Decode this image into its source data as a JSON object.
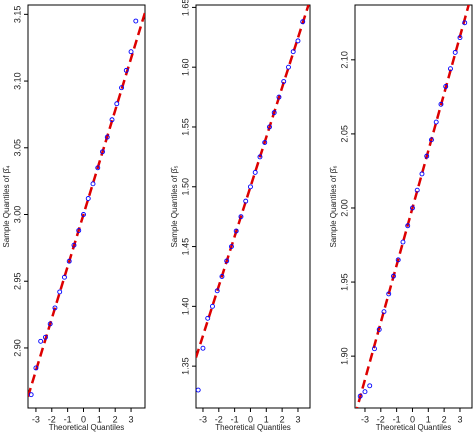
{
  "chart_data": [
    {
      "type": "scatter",
      "x_label": "Theoretical Quantiles",
      "y_label": "Sample Quantiles of β̂₄",
      "color": "#0000ff",
      "line_color": "#dd0000",
      "x": [
        -3.3,
        -3.0,
        -2.7,
        -2.4,
        -2.1,
        -1.8,
        -1.5,
        -1.2,
        -0.9,
        -0.6,
        -0.3,
        0,
        0.3,
        0.6,
        0.9,
        1.2,
        1.5,
        1.8,
        2.1,
        2.4,
        2.7,
        3.0,
        3.3
      ],
      "values": [
        2.865,
        2.885,
        2.905,
        2.908,
        2.918,
        2.93,
        2.942,
        2.953,
        2.965,
        2.977,
        2.988,
        3.0,
        3.012,
        3.023,
        3.035,
        3.047,
        3.058,
        3.071,
        3.083,
        3.095,
        3.108,
        3.122,
        3.145
      ],
      "ref_line": {
        "intercept": 3.0,
        "slope": 0.039
      },
      "xlim": [
        -3.5,
        3.88
      ],
      "ylim": [
        2.855,
        3.157
      ],
      "xticks": [
        -3,
        -2,
        -1,
        0,
        1,
        2,
        3
      ],
      "yticks": [
        {
          "value": 2.9,
          "label": "2.90"
        },
        2.95,
        {
          "value": 3.0,
          "label": "3.00"
        },
        3.05,
        {
          "value": 3.1,
          "label": "3.10"
        },
        3.15
      ]
    },
    {
      "type": "scatter",
      "x_label": "Theoretical Quantiles",
      "y_label": "Sample Quantiles of β̂₅",
      "color": "#0000ff",
      "line_color": "#dd0000",
      "x": [
        -3.3,
        -3.0,
        -2.7,
        -2.4,
        -2.1,
        -1.8,
        -1.5,
        -1.2,
        -0.9,
        -0.6,
        -0.3,
        0,
        0.3,
        0.6,
        0.9,
        1.2,
        1.5,
        1.8,
        2.1,
        2.4,
        2.7,
        3.0,
        3.3
      ],
      "values": [
        1.33,
        1.365,
        1.39,
        1.4,
        1.413,
        1.425,
        1.438,
        1.45,
        1.463,
        1.475,
        1.488,
        1.5,
        1.512,
        1.525,
        1.537,
        1.55,
        1.562,
        1.575,
        1.588,
        1.6,
        1.613,
        1.622,
        1.638
      ],
      "ref_line": {
        "intercept": 1.5,
        "slope": 0.0415
      },
      "xlim": [
        -3.44,
        3.76
      ],
      "ylim": [
        1.315,
        1.652
      ],
      "xticks": [
        -3,
        -2,
        -1,
        0,
        1,
        2,
        3
      ],
      "yticks": [
        1.35,
        {
          "value": 1.4,
          "label": "1.40"
        },
        1.45,
        {
          "value": 1.5,
          "label": "1.50"
        },
        1.55,
        {
          "value": 1.6,
          "label": "1.60"
        },
        1.65
      ]
    },
    {
      "type": "scatter",
      "x_label": "Theoretical Quantiles",
      "y_label": "Sample Quantiles of β̂₆",
      "color": "#0000ff",
      "line_color": "#dd0000",
      "x": [
        -3.3,
        -3.0,
        -2.7,
        -2.4,
        -2.1,
        -1.8,
        -1.5,
        -1.2,
        -0.9,
        -0.6,
        -0.3,
        0,
        0.3,
        0.6,
        0.9,
        1.2,
        1.5,
        1.8,
        2.1,
        2.4,
        2.7,
        3.0,
        3.3
      ],
      "values": [
        1.873,
        1.876,
        1.88,
        1.905,
        1.918,
        1.93,
        1.942,
        1.954,
        1.965,
        1.977,
        1.988,
        2.0,
        2.012,
        2.023,
        2.035,
        2.046,
        2.058,
        2.07,
        2.082,
        2.094,
        2.105,
        2.115,
        2.125
      ],
      "ref_line": {
        "intercept": 2.0,
        "slope": 0.0386
      },
      "xlim": [
        -3.63,
        3.76
      ],
      "ylim": [
        1.865,
        2.137
      ],
      "xticks": [
        -3,
        -2,
        -1,
        0,
        1,
        2,
        3
      ],
      "yticks": [
        {
          "value": 1.9,
          "label": "1.90"
        },
        1.95,
        {
          "value": 2.0,
          "label": "2.00"
        },
        2.05,
        {
          "value": 2.1,
          "label": "2.10"
        }
      ]
    }
  ]
}
